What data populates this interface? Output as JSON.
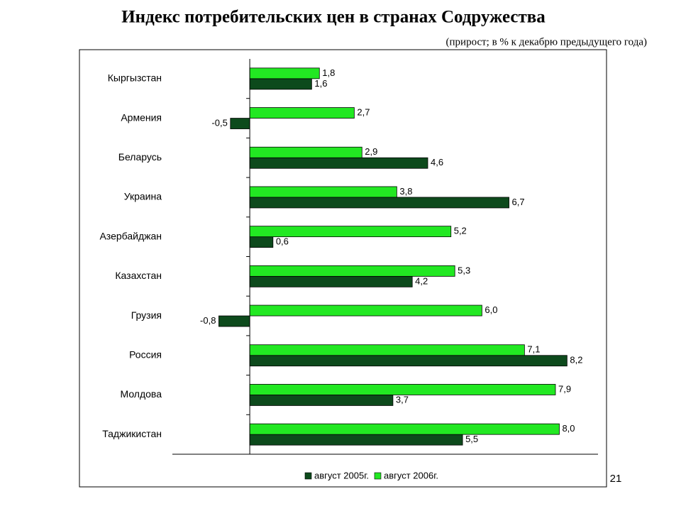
{
  "chart_data": {
    "type": "bar",
    "orientation": "horizontal",
    "title": "Индекс потребительских цен в странах Содружества",
    "subtitle": "(прирост; в % к декабрю предыдущего года)",
    "categories": [
      "Кыргызстан",
      "Армения",
      "Беларусь",
      "Украина",
      "Азербайджан",
      "Казахстан",
      "Грузия",
      "Россия",
      "Молдова",
      "Таджикистан"
    ],
    "series": [
      {
        "name": "август 2005г.",
        "color": "#0d4a1c",
        "values": [
          1.6,
          -0.5,
          4.6,
          6.7,
          0.6,
          4.2,
          -0.8,
          8.2,
          3.7,
          5.5
        ],
        "value_labels": [
          "1,6",
          "-0,5",
          "4,6",
          "6,7",
          "0,6",
          "4,2",
          "-0,8",
          "8,2",
          "3,7",
          "5,5"
        ]
      },
      {
        "name": "август 2006г.",
        "color": "#22e822",
        "values": [
          1.8,
          2.7,
          2.9,
          3.8,
          5.2,
          5.3,
          6.0,
          7.1,
          7.9,
          8.0
        ],
        "value_labels": [
          "1,8",
          "2,7",
          "2,9",
          "3,8",
          "5,2",
          "5,3",
          "6,0",
          "7,1",
          "7,9",
          "8,0"
        ]
      }
    ],
    "xlim": [
      -2,
      9
    ],
    "legend_position": "bottom",
    "page_number": "21"
  }
}
